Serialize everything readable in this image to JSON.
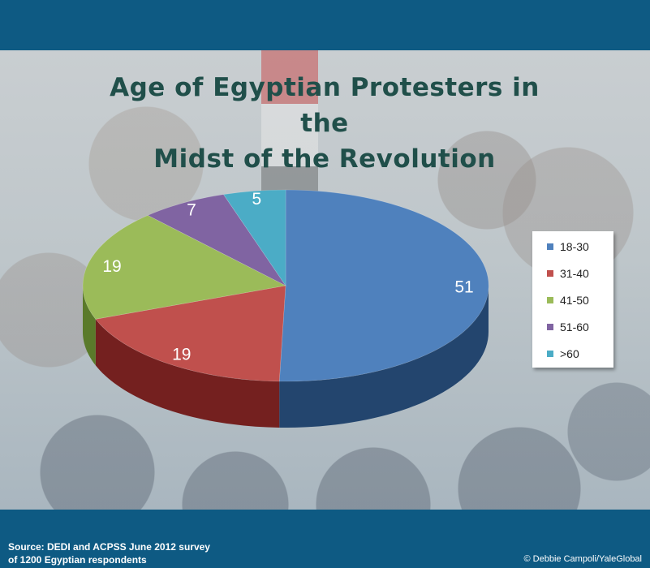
{
  "title_lines": [
    "Age of Egyptian Protesters in the",
    "Midst of the Revolution"
  ],
  "source_lines": [
    "Source: DEDI and ACPSS June 2012 survey",
    "of 1200 Egyptian respondents"
  ],
  "credit": "© Debbie Campoli/YaleGlobal",
  "chart_data": {
    "type": "pie",
    "title": "Age of Egyptian Protesters in the Midst of the Revolution",
    "categories": [
      "18-30",
      "31-40",
      "41-50",
      "51-60",
      ">60"
    ],
    "values": [
      51,
      19,
      19,
      7,
      5
    ],
    "colors": [
      "#4f81bd",
      "#c0504d",
      "#9bbb59",
      "#8064a2",
      "#4bacc6"
    ],
    "side_colors": [
      "#23456e",
      "#74201f",
      "#5a7a2a",
      "#4b3566",
      "#2a7189"
    ],
    "legend_placement": "right",
    "three_d": true
  }
}
